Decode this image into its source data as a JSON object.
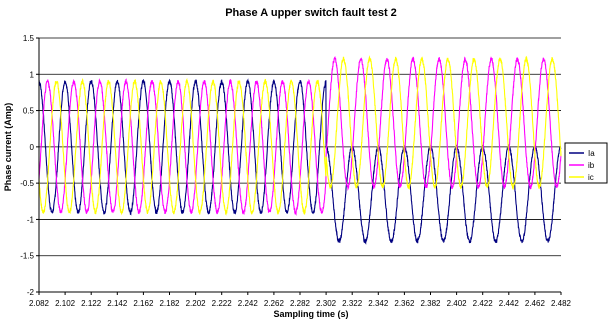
{
  "chart_data": {
    "type": "line",
    "title": "Phase A upper switch fault test 2",
    "xlabel": "Sampling time (s)",
    "ylabel": "Phase current (Amp)",
    "xlim": [
      2.082,
      2.482
    ],
    "ylim": [
      -2,
      1.5
    ],
    "xticks": [
      "2.082",
      "2.102",
      "2.122",
      "2.142",
      "2.162",
      "2.182",
      "2.202",
      "2.222",
      "2.242",
      "2.262",
      "2.282",
      "2.302",
      "2.322",
      "2.342",
      "2.362",
      "2.382",
      "2.402",
      "2.422",
      "2.442",
      "2.462",
      "2.482"
    ],
    "yticks": [
      "1.5",
      "1",
      "0.5",
      "0",
      "-0.5",
      "-1",
      "-1.5",
      "-2"
    ],
    "grid": "horizontal",
    "legend_position": "right",
    "fault_time": 2.302,
    "frequency_hz": 50,
    "pre_fault_amplitude": 0.9,
    "series": [
      {
        "name": "Ia",
        "color": "#000080",
        "phase_deg": 90,
        "pre_fault": {
          "offset": 0.0,
          "amplitude": 0.9
        },
        "post_fault": {
          "offset": -0.65,
          "amplitude": 0.65
        }
      },
      {
        "name": "ib",
        "color": "#ff00ff",
        "phase_deg": -30,
        "pre_fault": {
          "offset": 0.0,
          "amplitude": 0.9
        },
        "post_fault": {
          "offset": 0.33,
          "amplitude": 0.88
        }
      },
      {
        "name": "ic",
        "color": "#ffff00",
        "phase_deg": 210,
        "pre_fault": {
          "offset": 0.0,
          "amplitude": 0.9
        },
        "post_fault": {
          "offset": 0.33,
          "amplitude": 0.88
        }
      }
    ]
  }
}
